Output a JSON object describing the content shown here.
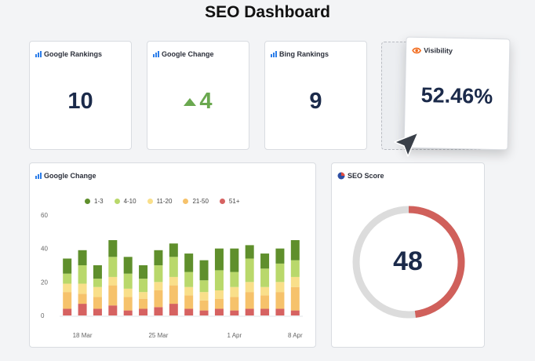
{
  "page": {
    "title": "SEO Dashboard"
  },
  "cards": {
    "google_rankings": {
      "label": "Google Rankings",
      "value": "10"
    },
    "google_change": {
      "label": "Google Change",
      "value": "4"
    },
    "bing_rankings": {
      "label": "Bing Rankings",
      "value": "9"
    },
    "visibility": {
      "label": "Visibility",
      "value": "52.46%"
    },
    "seo_score": {
      "label": "SEO Score",
      "value": "48",
      "score_fraction": 0.48
    },
    "chart": {
      "label": "Google Change"
    }
  },
  "colors": {
    "accent_blue": "#2b7de9",
    "up_green": "#6aa84f",
    "score_red": "#d0605b",
    "score_track": "#dcdcdc"
  },
  "chart_data": {
    "type": "bar",
    "stacked": true,
    "title": "Google Change",
    "ylim": [
      0,
      60
    ],
    "yticks": [
      "0",
      "20",
      "40",
      "60"
    ],
    "xtick_labels": [
      {
        "index": 1,
        "label": "18 Mar"
      },
      {
        "index": 6,
        "label": "25 Mar"
      },
      {
        "index": 11,
        "label": "1 Apr"
      },
      {
        "index": 15,
        "label": "8 Apr"
      }
    ],
    "x_count": 16,
    "series": [
      {
        "name": "51+",
        "color": "#d66261",
        "values": [
          4,
          7,
          4,
          6,
          3,
          4,
          5,
          7,
          4,
          3,
          4,
          3,
          4,
          4,
          4,
          3
        ]
      },
      {
        "name": "21-50",
        "color": "#f6c26b",
        "values": [
          10,
          6,
          7,
          12,
          8,
          6,
          10,
          11,
          8,
          6,
          6,
          8,
          10,
          8,
          10,
          14
        ]
      },
      {
        "name": "11-20",
        "color": "#f9df8a",
        "values": [
          5,
          6,
          6,
          5,
          5,
          4,
          5,
          5,
          5,
          5,
          5,
          6,
          6,
          5,
          6,
          6
        ]
      },
      {
        "name": "4-10",
        "color": "#b9d86b",
        "values": [
          6,
          11,
          5,
          12,
          9,
          8,
          10,
          12,
          9,
          7,
          12,
          9,
          14,
          11,
          11,
          10
        ]
      },
      {
        "name": "1-3",
        "color": "#5f8f2c",
        "values": [
          9,
          9,
          8,
          10,
          10,
          8,
          9,
          8,
          11,
          12,
          13,
          14,
          8,
          9,
          9,
          12
        ]
      }
    ],
    "legend_order": [
      "1-3",
      "4-10",
      "11-20",
      "21-50",
      "51+"
    ]
  }
}
